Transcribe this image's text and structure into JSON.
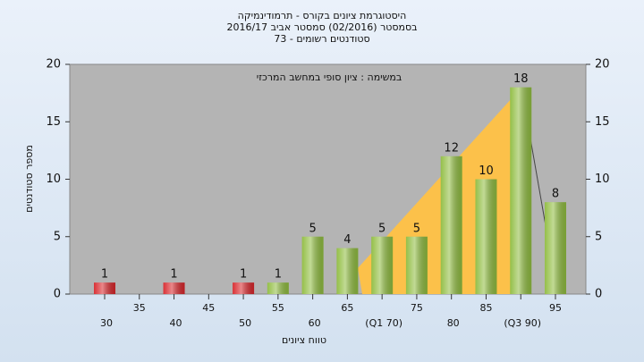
{
  "chart_data": {
    "type": "bar",
    "title": "היסטוגרמת ציונים בקורס - תרמודינמיקה",
    "subtitle": "בסמסטר  (02/2016)  סמסטר אביב 2016/17",
    "subtitle2": "סטודנטים רשומים - 73",
    "annotation": "במשימה : ציון סופי במחשב המרכזי",
    "ylabel": "מספר סטודנטים",
    "xlabel": "טווח ציונים",
    "categories": [
      "30",
      "35",
      "40",
      "45",
      "50",
      "55",
      "60",
      "65",
      "(Q1 70)",
      "75",
      "80",
      "85",
      "(Q3 90)",
      "95"
    ],
    "values": [
      1,
      null,
      1,
      null,
      1,
      1,
      5,
      4,
      5,
      5,
      12,
      10,
      18,
      8
    ],
    "colors": [
      "#d8262b",
      null,
      "#d8262b",
      null,
      "#d8262b",
      "#8fbc3f",
      "#8fbc3f",
      "#8fbc3f",
      "#8fbc3f",
      "#8fbc3f",
      "#8fbc3f",
      "#8fbc3f",
      "#8fbc3f",
      "#8fbc3f"
    ],
    "ylim": [
      0,
      20
    ],
    "yticks": [
      0,
      5,
      10,
      15,
      20
    ]
  }
}
